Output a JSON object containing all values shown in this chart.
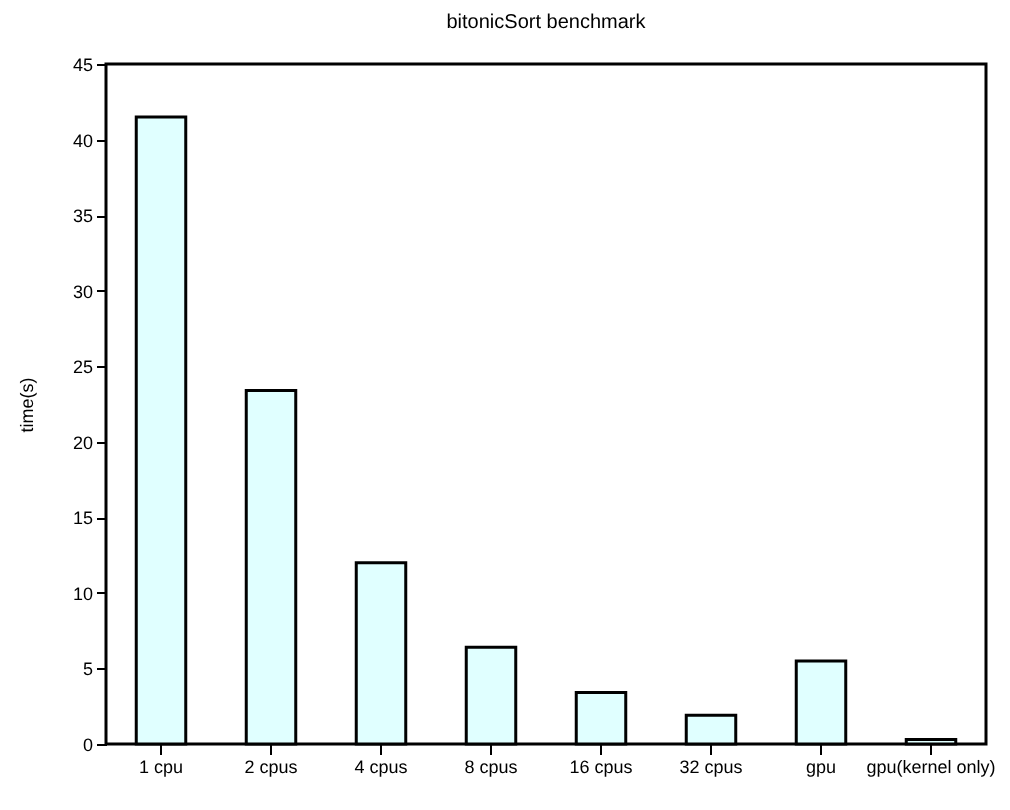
{
  "chart_data": {
    "type": "bar",
    "title": "bitonicSort benchmark",
    "ylabel": "time(s)",
    "categories": [
      "1 cpu",
      "2 cpus",
      "4 cpus",
      "8 cpus",
      "16 cpus",
      "32 cpus",
      "gpu",
      "gpu(kernel only)"
    ],
    "values": [
      41.5,
      23.4,
      12.0,
      6.4,
      3.4,
      1.9,
      5.5,
      0.3
    ],
    "color": "#e0ffff",
    "ylim": [
      0,
      45
    ],
    "yticks": [
      0,
      5,
      10,
      15,
      20,
      25,
      30,
      35,
      40,
      45
    ],
    "grid": false
  }
}
